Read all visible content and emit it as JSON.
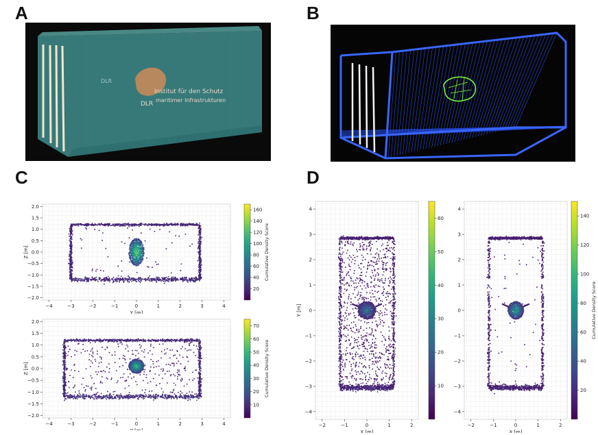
{
  "panel_labels": {
    "a": "A",
    "b": "B",
    "c": "C",
    "d": "D"
  },
  "render_a": {
    "logo_line1": "Institut für den Schutz",
    "logo_line2": "maritimer Infrastrukturen",
    "logo_abbr": "DLR",
    "colors": {
      "bg": "#0a0a0a",
      "container": "#3f8d8d",
      "object": "#c58a5a",
      "bars": "#f3e7cf"
    }
  },
  "render_b": {
    "colors": {
      "bg": "#050505",
      "frame": "#2a55ff",
      "object": "#7cff4a",
      "bars": "#f5f5f5"
    }
  },
  "chart_data": [
    {
      "id": "c-top",
      "type": "scatter",
      "panel": "C",
      "xlabel": "Y [m]",
      "ylabel": "Z [m]",
      "xlim": [
        -4.3,
        4.3
      ],
      "ylim": [
        -2.1,
        2.1
      ],
      "xticks": [
        -4,
        -3,
        -2,
        -1,
        0,
        1,
        2,
        3,
        4
      ],
      "yticks": [
        -2.0,
        -1.5,
        -1.0,
        -0.5,
        0.0,
        0.5,
        1.0,
        1.5,
        2.0
      ],
      "colorbar": {
        "label": "Cumulative Density Score",
        "min": 0,
        "max": 170,
        "ticks": [
          20,
          40,
          60,
          80,
          100,
          120,
          140,
          160
        ]
      },
      "box": {
        "x": [
          -3.0,
          2.9
        ],
        "y": [
          -1.2,
          1.2
        ]
      },
      "object": {
        "center": [
          0.0,
          0.0
        ],
        "rx": 0.35,
        "ry": 0.6,
        "peak_score": 160
      },
      "point_score_range": [
        5,
        30
      ]
    },
    {
      "id": "c-bottom",
      "type": "scatter",
      "panel": "C",
      "xlabel": "Y [m]",
      "ylabel": "Z [m]",
      "xlim": [
        -4.3,
        4.3
      ],
      "ylim": [
        -2.1,
        2.1
      ],
      "xticks": [
        -4,
        -3,
        -2,
        -1,
        0,
        1,
        2,
        3,
        4
      ],
      "yticks": [
        -2.0,
        -1.5,
        -1.0,
        -0.5,
        0.0,
        0.5,
        1.0,
        1.5,
        2.0
      ],
      "colorbar": {
        "label": "Cumulative Density Score",
        "min": 0,
        "max": 75,
        "ticks": [
          10,
          20,
          30,
          40,
          50,
          60,
          70
        ]
      },
      "box": {
        "x": [
          -3.3,
          2.9
        ],
        "y": [
          -1.2,
          1.2
        ]
      },
      "object": {
        "center": [
          0.0,
          0.1
        ],
        "rx": 0.35,
        "ry": 0.3,
        "peak_score": 60
      },
      "point_score_range": [
        3,
        15
      ]
    },
    {
      "id": "d-left",
      "type": "scatter",
      "panel": "D",
      "xlabel": "X [m]",
      "ylabel": "Y [m]",
      "xlim": [
        -2.3,
        2.3
      ],
      "ylim": [
        -4.3,
        4.3
      ],
      "xticks": [
        -2,
        -1,
        0,
        1,
        2
      ],
      "yticks": [
        -4,
        -3,
        -2,
        -1,
        0,
        1,
        2,
        3,
        4
      ],
      "colorbar": {
        "label": "Cumulative Density Score",
        "min": 0,
        "max": 65,
        "ticks": [
          10,
          20,
          30,
          40,
          50,
          60
        ]
      },
      "box": {
        "x": [
          -1.2,
          1.2
        ],
        "y": [
          -3.05,
          2.85
        ]
      },
      "object": {
        "center": [
          0.0,
          0.0
        ],
        "rx": 0.4,
        "ry": 0.35,
        "peak_score": 30
      },
      "point_score_range": [
        2,
        10
      ]
    },
    {
      "id": "d-right",
      "type": "scatter",
      "panel": "D",
      "xlabel": "X [m]",
      "ylabel": "",
      "xlim": [
        -2.3,
        2.3
      ],
      "ylim": [
        -4.3,
        4.3
      ],
      "xticks": [
        -2,
        -1,
        0,
        1,
        2
      ],
      "yticks": [
        -4,
        -3,
        -2,
        -1,
        0,
        1,
        2,
        3,
        4
      ],
      "colorbar": {
        "label": "Cumulative Density Score",
        "min": 0,
        "max": 150,
        "ticks": [
          20,
          40,
          60,
          80,
          100,
          120,
          140
        ]
      },
      "box": {
        "x": [
          -1.2,
          1.2
        ],
        "y": [
          -3.05,
          2.85
        ]
      },
      "object": {
        "center": [
          0.0,
          0.0
        ],
        "rx": 0.35,
        "ry": 0.35,
        "peak_score": 100
      },
      "point_score_range": [
        5,
        20
      ]
    }
  ]
}
